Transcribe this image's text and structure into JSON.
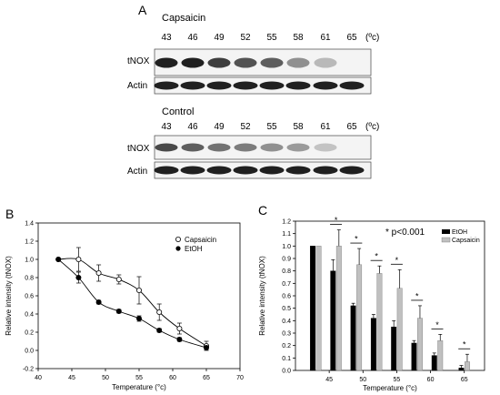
{
  "panelA": {
    "letter": "A",
    "unit": "(ºc)",
    "temps": [
      "43",
      "46",
      "49",
      "52",
      "55",
      "58",
      "61",
      "65"
    ],
    "capsaicin": {
      "title": "Capsaicin",
      "row_tnox": "tNOX",
      "row_actin": "Actin",
      "tnox_intensity": [
        1.0,
        1.0,
        0.85,
        0.75,
        0.7,
        0.45,
        0.25,
        0.0
      ],
      "actin_intensity": [
        1,
        1,
        1,
        1,
        1,
        1,
        1,
        1
      ]
    },
    "control": {
      "title": "Control",
      "row_tnox": "tNOX",
      "row_actin": "Actin",
      "tnox_intensity": [
        0.8,
        0.7,
        0.6,
        0.55,
        0.45,
        0.4,
        0.2,
        0.0
      ],
      "actin_intensity": [
        1,
        1,
        1,
        1,
        1,
        1,
        1,
        1
      ]
    }
  },
  "panelB": {
    "letter": "B",
    "legend": [
      "Capsaicin",
      "EtOH"
    ]
  },
  "panelC": {
    "letter": "C",
    "annotation": "* p<0.001",
    "sig_marker": "*",
    "legend": [
      "EtOH",
      "Capsaicin"
    ]
  },
  "chart_data": [
    {
      "type": "line",
      "xlabel": "Temperature (°c)",
      "ylabel": "Relative intensity (tNOX)",
      "xlim": [
        40,
        70
      ],
      "ylim": [
        -0.2,
        1.4
      ],
      "xticks": [
        "40",
        "45",
        "50",
        "55",
        "60",
        "65",
        "70"
      ],
      "yticks": [
        "-0.2",
        "0.0",
        "0.2",
        "0.4",
        "0.6",
        "0.8",
        "1.0",
        "1.2",
        "1.4"
      ],
      "legend_position": "top-right",
      "series": [
        {
          "name": "Capsaicin",
          "marker": "open-circle",
          "x": [
            43,
            46,
            49,
            52,
            55,
            58,
            61,
            65
          ],
          "y": [
            1.0,
            1.0,
            0.85,
            0.78,
            0.66,
            0.42,
            0.24,
            0.05
          ],
          "err": [
            0.0,
            0.13,
            0.09,
            0.05,
            0.15,
            0.09,
            0.06,
            0.05
          ]
        },
        {
          "name": "EtOH",
          "marker": "filled-circle",
          "x": [
            43,
            46,
            49,
            52,
            55,
            58,
            61,
            65
          ],
          "y": [
            1.0,
            0.8,
            0.53,
            0.43,
            0.35,
            0.22,
            0.12,
            0.03
          ],
          "err": [
            0.0,
            0.06,
            0.02,
            0.02,
            0.03,
            0.02,
            0.02,
            0.02
          ]
        }
      ]
    },
    {
      "type": "bar",
      "xlabel": "Temperature (°c)",
      "ylabel": "Relative intensity (tNOX)",
      "ylim": [
        0,
        1.2
      ],
      "yticks": [
        "0.0",
        "0.1",
        "0.2",
        "0.3",
        "0.4",
        "0.5",
        "0.6",
        "0.7",
        "0.8",
        "0.9",
        "1.0",
        "1.1",
        "1.2"
      ],
      "categories": [
        "43",
        "46",
        "49",
        "52",
        "55",
        "58",
        "61",
        "65"
      ],
      "xticks": [
        "45",
        "50",
        "55",
        "60",
        "65"
      ],
      "legend_position": "top-right",
      "series": [
        {
          "name": "EtOH",
          "color": "#000000",
          "values": [
            1.0,
            0.8,
            0.52,
            0.42,
            0.35,
            0.22,
            0.12,
            0.02
          ],
          "err": [
            0.0,
            0.09,
            0.02,
            0.03,
            0.05,
            0.02,
            0.02,
            0.02
          ]
        },
        {
          "name": "Capsaicin",
          "color": "#c0c0c0",
          "values": [
            1.0,
            1.0,
            0.85,
            0.78,
            0.66,
            0.42,
            0.24,
            0.07
          ],
          "err": [
            0.0,
            0.13,
            0.13,
            0.06,
            0.15,
            0.1,
            0.05,
            0.06
          ]
        }
      ],
      "significant": [
        false,
        true,
        true,
        true,
        true,
        true,
        true,
        true
      ]
    }
  ]
}
